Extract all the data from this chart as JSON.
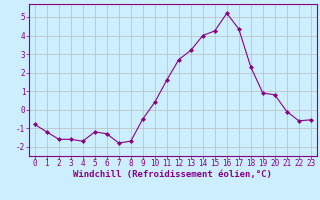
{
  "x": [
    0,
    1,
    2,
    3,
    4,
    5,
    6,
    7,
    8,
    9,
    10,
    11,
    12,
    13,
    14,
    15,
    16,
    17,
    18,
    19,
    20,
    21,
    22,
    23
  ],
  "y": [
    -0.8,
    -1.2,
    -1.6,
    -1.6,
    -1.7,
    -1.2,
    -1.3,
    -1.8,
    -1.7,
    -0.5,
    0.4,
    1.6,
    2.7,
    3.2,
    4.0,
    4.25,
    5.2,
    4.35,
    2.3,
    0.9,
    0.8,
    -0.1,
    -0.6,
    -0.55
  ],
  "line_color": "#880088",
  "marker": "D",
  "marker_size": 2,
  "bg_color": "#cceeff",
  "grid_color": "#bbbbbb",
  "xlabel": "Windchill (Refroidissement éolien,°C)",
  "xlabel_color": "#880088",
  "tick_color": "#880088",
  "spine_color": "#880088",
  "ylim": [
    -2.5,
    5.7
  ],
  "xlim": [
    -0.5,
    23.5
  ],
  "yticks": [
    -2,
    -1,
    0,
    1,
    2,
    3,
    4,
    5
  ],
  "xticks": [
    0,
    1,
    2,
    3,
    4,
    5,
    6,
    7,
    8,
    9,
    10,
    11,
    12,
    13,
    14,
    15,
    16,
    17,
    18,
    19,
    20,
    21,
    22,
    23
  ],
  "tick_fontsize": 5.5,
  "xlabel_fontsize": 6.5
}
